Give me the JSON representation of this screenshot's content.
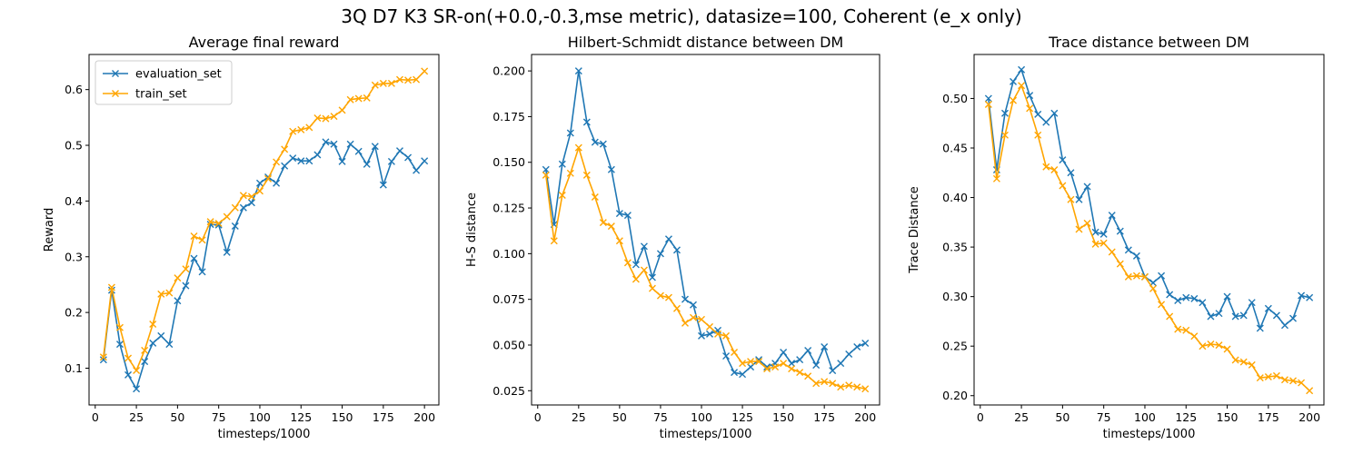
{
  "figure": {
    "suptitle": "3Q D7 K3 SR-on(+0.0,-0.3,mse metric), datasize=100, Coherent (e_x only)",
    "colors": {
      "evaluation_set": "#1f77b4",
      "train_set": "#ffa500"
    }
  },
  "chart_data": [
    {
      "type": "line",
      "title": "Average final reward",
      "xlabel": "timesteps/1000",
      "ylabel": "Reward",
      "xlim": [
        -3.75,
        208.75
      ],
      "ylim": [
        0.034,
        0.663
      ],
      "xticks": [
        0,
        25,
        50,
        75,
        100,
        125,
        150,
        175,
        200
      ],
      "xtick_labels": [
        "0",
        "25",
        "50",
        "75",
        "100",
        "125",
        "150",
        "175",
        "200"
      ],
      "yticks": [
        0.1,
        0.2,
        0.3,
        0.4,
        0.5,
        0.6
      ],
      "ytick_labels": [
        "0.1",
        "0.2",
        "0.3",
        "0.4",
        "0.5",
        "0.6"
      ],
      "legend": {
        "placement": "upper-left",
        "entries": [
          "evaluation_set",
          "train_set"
        ]
      },
      "grid": false,
      "marker": "x",
      "x": [
        5,
        10,
        15,
        20,
        25,
        30,
        35,
        40,
        45,
        50,
        55,
        60,
        65,
        70,
        75,
        80,
        85,
        90,
        95,
        100,
        105,
        110,
        115,
        120,
        125,
        130,
        135,
        140,
        145,
        150,
        155,
        160,
        165,
        170,
        175,
        180,
        185,
        190,
        195,
        200
      ],
      "series": [
        {
          "name": "evaluation_set",
          "color": "#1f77b4",
          "values": [
            0.115,
            0.24,
            0.143,
            0.088,
            0.063,
            0.112,
            0.145,
            0.158,
            0.143,
            0.221,
            0.248,
            0.297,
            0.273,
            0.358,
            0.357,
            0.308,
            0.355,
            0.388,
            0.397,
            0.432,
            0.443,
            0.432,
            0.463,
            0.477,
            0.472,
            0.472,
            0.483,
            0.506,
            0.502,
            0.471,
            0.502,
            0.489,
            0.466,
            0.498,
            0.429,
            0.471,
            0.49,
            0.478,
            0.455,
            0.472
          ]
        },
        {
          "name": "train_set",
          "color": "#ffa500",
          "values": [
            0.12,
            0.245,
            0.173,
            0.118,
            0.096,
            0.132,
            0.179,
            0.233,
            0.235,
            0.262,
            0.278,
            0.337,
            0.33,
            0.363,
            0.36,
            0.372,
            0.388,
            0.41,
            0.408,
            0.418,
            0.44,
            0.47,
            0.493,
            0.525,
            0.528,
            0.532,
            0.549,
            0.548,
            0.552,
            0.563,
            0.582,
            0.584,
            0.585,
            0.608,
            0.611,
            0.611,
            0.618,
            0.617,
            0.618,
            0.633
          ]
        }
      ]
    },
    {
      "type": "line",
      "title": "Hilbert-Schmidt distance between DM",
      "xlabel": "timesteps/1000",
      "ylabel": "H-S distance",
      "xlim": [
        -3.75,
        208.75
      ],
      "ylim": [
        0.0172,
        0.209
      ],
      "xticks": [
        0,
        25,
        50,
        75,
        100,
        125,
        150,
        175,
        200
      ],
      "xtick_labels": [
        "0",
        "25",
        "50",
        "75",
        "100",
        "125",
        "150",
        "175",
        "200"
      ],
      "yticks": [
        0.025,
        0.05,
        0.075,
        0.1,
        0.125,
        0.15,
        0.175,
        0.2
      ],
      "ytick_labels": [
        "0.025",
        "0.050",
        "0.075",
        "0.100",
        "0.125",
        "0.150",
        "0.175",
        "0.200"
      ],
      "grid": false,
      "marker": "x",
      "x": [
        5,
        10,
        15,
        20,
        25,
        30,
        35,
        40,
        45,
        50,
        55,
        60,
        65,
        70,
        75,
        80,
        85,
        90,
        95,
        100,
        105,
        110,
        115,
        120,
        125,
        130,
        135,
        140,
        145,
        150,
        155,
        160,
        165,
        170,
        175,
        180,
        185,
        190,
        195,
        200
      ],
      "series": [
        {
          "name": "evaluation_set",
          "color": "#1f77b4",
          "values": [
            0.146,
            0.116,
            0.149,
            0.166,
            0.2,
            0.172,
            0.161,
            0.16,
            0.146,
            0.122,
            0.121,
            0.094,
            0.104,
            0.087,
            0.1,
            0.108,
            0.102,
            0.075,
            0.072,
            0.055,
            0.056,
            0.058,
            0.044,
            0.035,
            0.034,
            0.038,
            0.042,
            0.038,
            0.04,
            0.046,
            0.04,
            0.042,
            0.047,
            0.039,
            0.049,
            0.036,
            0.04,
            0.045,
            0.049,
            0.051
          ]
        },
        {
          "name": "train_set",
          "color": "#ffa500",
          "values": [
            0.143,
            0.107,
            0.132,
            0.144,
            0.158,
            0.143,
            0.131,
            0.117,
            0.115,
            0.107,
            0.095,
            0.086,
            0.091,
            0.081,
            0.077,
            0.076,
            0.07,
            0.062,
            0.065,
            0.064,
            0.06,
            0.056,
            0.055,
            0.046,
            0.04,
            0.041,
            0.041,
            0.037,
            0.038,
            0.04,
            0.037,
            0.035,
            0.033,
            0.029,
            0.03,
            0.029,
            0.027,
            0.028,
            0.027,
            0.026
          ]
        }
      ]
    },
    {
      "type": "line",
      "title": "Trace distance between DM",
      "xlabel": "timesteps/1000",
      "ylabel": "Trace Distance",
      "xlim": [
        -3.75,
        208.75
      ],
      "ylim": [
        0.1906,
        0.5444
      ],
      "xticks": [
        0,
        25,
        50,
        75,
        100,
        125,
        150,
        175,
        200
      ],
      "xtick_labels": [
        "0",
        "25",
        "50",
        "75",
        "100",
        "125",
        "150",
        "175",
        "200"
      ],
      "yticks": [
        0.2,
        0.25,
        0.3,
        0.35,
        0.4,
        0.45,
        0.5
      ],
      "ytick_labels": [
        "0.20",
        "0.25",
        "0.30",
        "0.35",
        "0.40",
        "0.45",
        "0.50"
      ],
      "grid": false,
      "marker": "x",
      "x": [
        5,
        10,
        15,
        20,
        25,
        30,
        35,
        40,
        45,
        50,
        55,
        60,
        65,
        70,
        75,
        80,
        85,
        90,
        95,
        100,
        105,
        110,
        115,
        120,
        125,
        130,
        135,
        140,
        145,
        150,
        155,
        160,
        165,
        170,
        175,
        180,
        185,
        190,
        195,
        200
      ],
      "series": [
        {
          "name": "evaluation_set",
          "color": "#1f77b4",
          "values": [
            0.5,
            0.428,
            0.485,
            0.517,
            0.529,
            0.503,
            0.484,
            0.476,
            0.485,
            0.438,
            0.425,
            0.398,
            0.411,
            0.365,
            0.363,
            0.382,
            0.366,
            0.347,
            0.341,
            0.32,
            0.314,
            0.321,
            0.302,
            0.296,
            0.299,
            0.298,
            0.294,
            0.28,
            0.283,
            0.3,
            0.28,
            0.281,
            0.294,
            0.268,
            0.288,
            0.281,
            0.271,
            0.278,
            0.301,
            0.299
          ]
        },
        {
          "name": "train_set",
          "color": "#ffa500",
          "values": [
            0.494,
            0.419,
            0.463,
            0.498,
            0.513,
            0.49,
            0.463,
            0.431,
            0.428,
            0.412,
            0.398,
            0.368,
            0.374,
            0.353,
            0.354,
            0.345,
            0.333,
            0.32,
            0.321,
            0.32,
            0.308,
            0.292,
            0.28,
            0.267,
            0.266,
            0.26,
            0.25,
            0.252,
            0.251,
            0.247,
            0.236,
            0.234,
            0.231,
            0.218,
            0.219,
            0.22,
            0.216,
            0.215,
            0.213,
            0.205
          ]
        }
      ]
    }
  ]
}
